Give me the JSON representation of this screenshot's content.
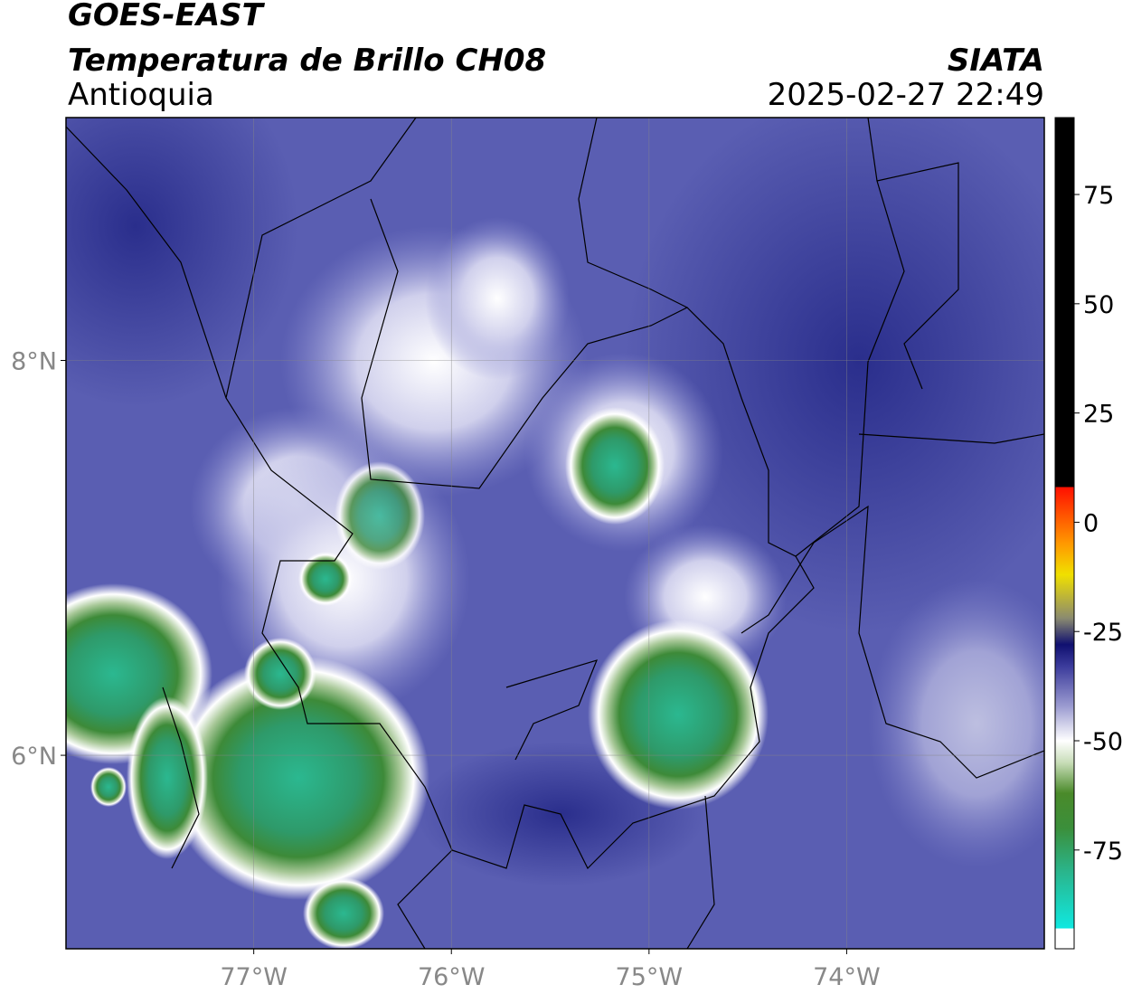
{
  "header": {
    "satellite": "GOES-EAST",
    "product": "Temperatura de Brillo CH08",
    "region": "Antioquia",
    "agency": "SIATA",
    "datetime": "2025-02-27 22:49"
  },
  "map": {
    "xlim": [
      -77.95,
      -73.0
    ],
    "ylim": [
      5.02,
      9.23
    ],
    "xticks": [
      {
        "value": -77,
        "label": "77°W"
      },
      {
        "value": -76,
        "label": "76°W"
      },
      {
        "value": -75,
        "label": "75°W"
      },
      {
        "value": -74,
        "label": "74°W"
      }
    ],
    "yticks": [
      {
        "value": 6,
        "label": "6°N"
      },
      {
        "value": 8,
        "label": "8°N"
      }
    ],
    "grid": true
  },
  "colorbar": {
    "clim": [
      -97.6,
      92.6
    ],
    "ticks": [
      -75,
      -50,
      -25,
      0,
      25,
      50,
      75
    ],
    "colormap": [
      {
        "value": -97.6,
        "color": "#ffffff"
      },
      {
        "value": -93,
        "color": "#ffffff"
      },
      {
        "value": -92.9,
        "color": "#10e8e0"
      },
      {
        "value": -80,
        "color": "#2ab58c"
      },
      {
        "value": -70,
        "color": "#3b8f3b"
      },
      {
        "value": -62,
        "color": "#4a8a2a"
      },
      {
        "value": -55,
        "color": "#c8ddb8"
      },
      {
        "value": -50,
        "color": "#ffffff"
      },
      {
        "value": -42,
        "color": "#9a9ad0"
      },
      {
        "value": -33,
        "color": "#3c3c9c"
      },
      {
        "value": -28,
        "color": "#101070"
      },
      {
        "value": -22,
        "color": "#8a8a70"
      },
      {
        "value": -12,
        "color": "#f0e000"
      },
      {
        "value": -5,
        "color": "#ff9a00"
      },
      {
        "value": 8,
        "color": "#ff1000"
      },
      {
        "value": 8.1,
        "color": "#000000"
      },
      {
        "value": 92.6,
        "color": "#000000"
      }
    ]
  }
}
